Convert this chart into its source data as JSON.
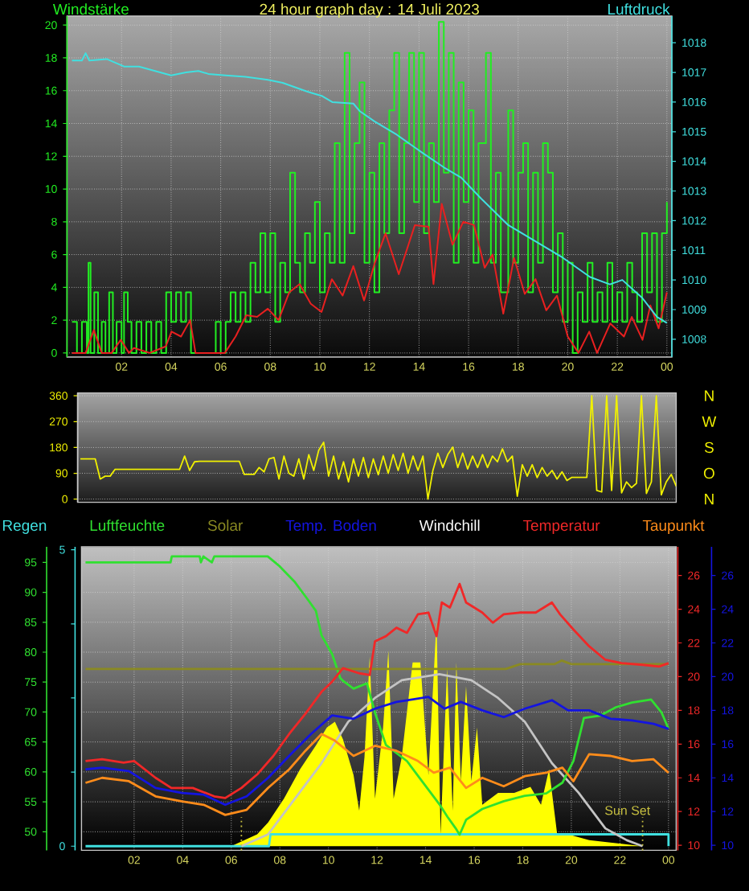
{
  "chart_data": [
    {
      "type": "line",
      "title": "24 hour graph day : 14 Juli 2023",
      "ylabel": "Windstärke",
      "y2label": "Luftdruck",
      "xlim": [
        "2023-07-13T23:48",
        "2023-07-15T00:12"
      ],
      "xticks": [
        {
          "value": "2023-07-14T02:00",
          "label": "02"
        },
        {
          "value": "2023-07-14T04:00",
          "label": "04"
        },
        {
          "value": "2023-07-14T06:00",
          "label": "06"
        },
        {
          "value": "2023-07-14T08:00",
          "label": "08"
        },
        {
          "value": "2023-07-14T10:00",
          "label": "10"
        },
        {
          "value": "2023-07-14T12:00",
          "label": "12"
        },
        {
          "value": "2023-07-14T14:00",
          "label": "14"
        },
        {
          "value": "2023-07-14T16:00",
          "label": "16"
        },
        {
          "value": "2023-07-14T18:00",
          "label": "18"
        },
        {
          "value": "2023-07-14T20:00",
          "label": "20"
        },
        {
          "value": "2023-07-14T22:00",
          "label": "22"
        },
        {
          "value": "2023-07-15T00:00",
          "label": "00"
        }
      ],
      "ylim": [
        -0.25,
        20.55
      ],
      "yticks": [
        0,
        2,
        4,
        6,
        8,
        10,
        12,
        14,
        16,
        18,
        20
      ],
      "y2lim": [
        1007.4,
        1018.9
      ],
      "y2ticks": [
        1008,
        1009,
        1010,
        1011,
        1012,
        1013,
        1014,
        1015,
        1016,
        1017,
        1018
      ],
      "grid": true,
      "series": [
        {
          "type": "step",
          "color": "#22ee22",
          "x": [
            "2023-07-14T00:00",
            "2023-07-14T00:12",
            "2023-07-14T00:24",
            "2023-07-14T00:36",
            "2023-07-14T00:40",
            "2023-07-14T00:45",
            "2023-07-14T00:54",
            "2023-07-14T01:03",
            "2023-07-14T01:12",
            "2023-07-14T01:21",
            "2023-07-14T01:30",
            "2023-07-14T01:39",
            "2023-07-14T01:48",
            "2023-07-14T02:00",
            "2023-07-14T02:06",
            "2023-07-14T02:15",
            "2023-07-14T02:24",
            "2023-07-14T02:36",
            "2023-07-14T02:48",
            "2023-07-14T03:00",
            "2023-07-14T03:12",
            "2023-07-14T03:24",
            "2023-07-14T03:36",
            "2023-07-14T03:48",
            "2023-07-14T04:00",
            "2023-07-14T04:12",
            "2023-07-14T04:24",
            "2023-07-14T04:36",
            "2023-07-14T04:48",
            "2023-07-14T05:00",
            "2023-07-14T05:18",
            "2023-07-14T05:36",
            "2023-07-14T05:48",
            "2023-07-14T06:00",
            "2023-07-14T06:12",
            "2023-07-14T06:24",
            "2023-07-14T06:36",
            "2023-07-14T06:48",
            "2023-07-14T07:00",
            "2023-07-14T07:12",
            "2023-07-14T07:24",
            "2023-07-14T07:36",
            "2023-07-14T07:48",
            "2023-07-14T08:00",
            "2023-07-14T08:12",
            "2023-07-14T08:24",
            "2023-07-14T08:36",
            "2023-07-14T08:48",
            "2023-07-14T09:00",
            "2023-07-14T09:12",
            "2023-07-14T09:24",
            "2023-07-14T09:36",
            "2023-07-14T09:48",
            "2023-07-14T10:00",
            "2023-07-14T10:12",
            "2023-07-14T10:24",
            "2023-07-14T10:36",
            "2023-07-14T10:48",
            "2023-07-14T11:00",
            "2023-07-14T11:12",
            "2023-07-14T11:24",
            "2023-07-14T11:36",
            "2023-07-14T11:48",
            "2023-07-14T12:00",
            "2023-07-14T12:12",
            "2023-07-14T12:24",
            "2023-07-14T12:36",
            "2023-07-14T12:48",
            "2023-07-14T13:00",
            "2023-07-14T13:12",
            "2023-07-14T13:24",
            "2023-07-14T13:36",
            "2023-07-14T13:48",
            "2023-07-14T14:00",
            "2023-07-14T14:12",
            "2023-07-14T14:24",
            "2023-07-14T14:36",
            "2023-07-14T14:48",
            "2023-07-14T15:00",
            "2023-07-14T15:12",
            "2023-07-14T15:24",
            "2023-07-14T15:36",
            "2023-07-14T15:48",
            "2023-07-14T16:00",
            "2023-07-14T16:12",
            "2023-07-14T16:24",
            "2023-07-14T16:42",
            "2023-07-14T16:54",
            "2023-07-14T17:06",
            "2023-07-14T17:18",
            "2023-07-14T17:36",
            "2023-07-14T17:48",
            "2023-07-14T18:00",
            "2023-07-14T18:12",
            "2023-07-14T18:24",
            "2023-07-14T18:36",
            "2023-07-14T18:48",
            "2023-07-14T19:00",
            "2023-07-14T19:12",
            "2023-07-14T19:24",
            "2023-07-14T19:36",
            "2023-07-14T19:48",
            "2023-07-14T20:00",
            "2023-07-14T20:12",
            "2023-07-14T20:24",
            "2023-07-14T20:36",
            "2023-07-14T20:48",
            "2023-07-14T21:00",
            "2023-07-14T21:12",
            "2023-07-14T21:24",
            "2023-07-14T21:36",
            "2023-07-14T21:48",
            "2023-07-14T22:00",
            "2023-07-14T22:12",
            "2023-07-14T22:24",
            "2023-07-14T22:36",
            "2023-07-14T22:48",
            "2023-07-14T23:00",
            "2023-07-14T23:12",
            "2023-07-14T23:24",
            "2023-07-14T23:36",
            "2023-07-14T23:48",
            "2023-07-15T00:00"
          ],
          "values": [
            1.9,
            0,
            1.9,
            0,
            5.5,
            0,
            3.7,
            0,
            1.9,
            0,
            3.7,
            0,
            1.9,
            0,
            3.7,
            1.9,
            0,
            1.9,
            0,
            1.9,
            0,
            1.9,
            0,
            3.7,
            1.9,
            3.7,
            1.9,
            3.7,
            0,
            0,
            0,
            0,
            1.9,
            0,
            1.9,
            3.7,
            1.9,
            3.7,
            1.9,
            5.5,
            3.7,
            7.3,
            3.7,
            7.3,
            1.9,
            5.5,
            3.7,
            11.0,
            5.5,
            3.7,
            7.3,
            5.5,
            9.2,
            3.7,
            7.3,
            5.5,
            12.8,
            5.5,
            18.3,
            7.3,
            12.8,
            16.5,
            5.5,
            11.0,
            3.7,
            12.8,
            7.3,
            14.8,
            18.3,
            7.3,
            12.8,
            18.3,
            9.2,
            18.3,
            7.3,
            12.8,
            9.2,
            20.2,
            11.0,
            18.3,
            5.5,
            16.5,
            9.2,
            14.8,
            5.5,
            12.8,
            18.3,
            5.5,
            11.0,
            3.7,
            14.8,
            5.5,
            11.0,
            12.8,
            3.7,
            11.0,
            5.5,
            12.8,
            11.0,
            3.7,
            7.3,
            1.9,
            5.5,
            0,
            3.7,
            1.9,
            5.5,
            1.9,
            3.7,
            1.9,
            5.5,
            1.9,
            3.7,
            1.9,
            5.5,
            3.7,
            1.9,
            7.3,
            3.7,
            7.3,
            1.9,
            7.3,
            9.2
          ]
        },
        {
          "color": "#e82020",
          "x": [
            "2023-07-14T00:00",
            "2023-07-14T00:33",
            "2023-07-14T00:53",
            "2023-07-14T01:12",
            "2023-07-14T01:36",
            "2023-07-14T01:58",
            "2023-07-14T02:18",
            "2023-07-14T02:30",
            "2023-07-14T03:08",
            "2023-07-14T03:47",
            "2023-07-14T04:01",
            "2023-07-14T04:24",
            "2023-07-14T04:46",
            "2023-07-14T04:59",
            "2023-07-14T05:30",
            "2023-07-14T06:10",
            "2023-07-14T06:36",
            "2023-07-14T07:02",
            "2023-07-14T07:28",
            "2023-07-14T07:54",
            "2023-07-14T08:20",
            "2023-07-14T08:46",
            "2023-07-14T09:11",
            "2023-07-14T09:38",
            "2023-07-14T10:04",
            "2023-07-14T10:29",
            "2023-07-14T10:55",
            "2023-07-14T11:21",
            "2023-07-14T11:47",
            "2023-07-14T12:13",
            "2023-07-14T12:39",
            "2023-07-14T13:11",
            "2023-07-14T13:50",
            "2023-07-14T14:23",
            "2023-07-14T14:35",
            "2023-07-14T14:55",
            "2023-07-14T15:21",
            "2023-07-14T15:47",
            "2023-07-14T16:13",
            "2023-07-14T16:39",
            "2023-07-14T16:58",
            "2023-07-14T17:24",
            "2023-07-14T17:50",
            "2023-07-14T18:16",
            "2023-07-14T18:42",
            "2023-07-14T19:08",
            "2023-07-14T19:34",
            "2023-07-14T20:00",
            "2023-07-14T20:26",
            "2023-07-14T20:52",
            "2023-07-14T21:11",
            "2023-07-14T21:43",
            "2023-07-14T22:16",
            "2023-07-14T22:35",
            "2023-07-14T23:01",
            "2023-07-14T23:20",
            "2023-07-14T23:40",
            "2023-07-15T00:00"
          ],
          "values": [
            0,
            0,
            1.4,
            0,
            0,
            0.8,
            0,
            0.3,
            0,
            0.4,
            1.3,
            1.0,
            2.0,
            0,
            0,
            0,
            1.0,
            2.3,
            2.2,
            2.7,
            2.0,
            3.7,
            4.2,
            3.0,
            2.5,
            4.5,
            3.5,
            5.3,
            3.2,
            5.5,
            7.3,
            4.8,
            7.8,
            7.7,
            4.2,
            9.1,
            6.6,
            8.0,
            7.8,
            5.2,
            6.0,
            2.4,
            5.8,
            3.6,
            4.5,
            2.6,
            3.5,
            1.0,
            0,
            1.3,
            0,
            1.8,
            1.0,
            2.2,
            0.8,
            2.9,
            1.5,
            3.7
          ]
        },
        {
          "color": "#40e0e0",
          "axis": "y2",
          "x": [
            "2023-07-14T00:00",
            "2023-07-14T00:24",
            "2023-07-14T00:33",
            "2023-07-14T00:42",
            "2023-07-14T01:24",
            "2023-07-14T02:06",
            "2023-07-14T02:42",
            "2023-07-14T04:00",
            "2023-07-14T04:36",
            "2023-07-14T05:06",
            "2023-07-14T05:30",
            "2023-07-14T06:12",
            "2023-07-14T07:00",
            "2023-07-14T07:54",
            "2023-07-14T08:30",
            "2023-07-14T09:00",
            "2023-07-14T09:30",
            "2023-07-14T10:06",
            "2023-07-14T10:30",
            "2023-07-14T11:21",
            "2023-07-14T11:36",
            "2023-07-14T12:12",
            "2023-07-14T13:06",
            "2023-07-14T14:12",
            "2023-07-14T15:00",
            "2023-07-14T15:42",
            "2023-07-14T16:30",
            "2023-07-14T17:36",
            "2023-07-14T18:42",
            "2023-07-14T19:48",
            "2023-07-14T20:54",
            "2023-07-14T21:42",
            "2023-07-14T22:12",
            "2023-07-14T23:00",
            "2023-07-14T23:36",
            "2023-07-15T00:00"
          ],
          "values": [
            1017.4,
            1017.4,
            1017.65,
            1017.4,
            1017.45,
            1017.2,
            1017.2,
            1016.9,
            1017.0,
            1017.05,
            1016.95,
            1016.9,
            1016.85,
            1016.75,
            1016.65,
            1016.5,
            1016.35,
            1016.2,
            1016.0,
            1015.95,
            1015.7,
            1015.35,
            1014.9,
            1014.25,
            1013.8,
            1013.45,
            1012.75,
            1011.85,
            1011.3,
            1010.75,
            1010.1,
            1009.85,
            1010.0,
            1009.4,
            1008.75,
            1008.55
          ]
        }
      ]
    },
    {
      "type": "line",
      "categories": [
        null,
        null,
        null,
        null,
        null,
        null,
        null,
        null,
        null,
        null,
        null,
        null,
        null,
        null,
        null,
        null,
        null,
        null,
        null,
        null,
        null,
        null,
        null,
        null,
        null,
        null,
        null,
        null,
        null,
        null,
        null,
        null,
        null,
        null,
        null,
        null,
        null,
        null,
        null,
        null,
        null,
        null,
        null,
        null,
        null,
        null,
        null,
        null,
        null,
        null,
        null,
        null,
        null,
        null,
        null,
        null,
        null,
        null,
        null,
        null,
        null,
        null,
        null,
        null,
        null,
        null,
        null,
        null,
        null,
        null,
        null,
        null,
        null,
        null,
        null,
        null,
        null,
        null,
        null,
        null,
        null,
        null,
        null,
        null,
        null,
        null,
        null,
        null,
        null,
        null,
        null,
        null,
        null,
        null,
        null,
        null,
        null,
        null,
        null,
        null,
        null,
        null,
        null,
        null,
        null,
        null,
        null,
        null,
        null,
        null,
        null,
        null,
        null,
        null,
        null,
        null,
        null,
        null,
        null,
        null,
        null
      ],
      "ylim": [
        -11,
        370
      ],
      "yticks": [
        0,
        90,
        180,
        270,
        360
      ],
      "grid": "y",
      "annotations": [
        "N",
        "W",
        "S",
        "O",
        "N"
      ],
      "series": [
        {
          "color": "#f0f000",
          "values": [
            140,
            140,
            140,
            140,
            70,
            80,
            80,
            104,
            104,
            104,
            104,
            104,
            104,
            104,
            104,
            104,
            104,
            104,
            104,
            104,
            104,
            150,
            100,
            130,
            132,
            132,
            132,
            132,
            132,
            132,
            132,
            132,
            132,
            86,
            86,
            86,
            110,
            95,
            140,
            145,
            70,
            150,
            90,
            80,
            140,
            70,
            155,
            100,
            170,
            198,
            80,
            150,
            70,
            130,
            60,
            140,
            80,
            145,
            75,
            140,
            85,
            150,
            90,
            155,
            100,
            160,
            90,
            150,
            100,
            150,
            0,
            100,
            160,
            110,
            155,
            181,
            110,
            160,
            105,
            150,
            110,
            155,
            110,
            150,
            130,
            175,
            130,
            150,
            10,
            120,
            80,
            120,
            75,
            110,
            80,
            100,
            70,
            95,
            65,
            76,
            76,
            76,
            76,
            360,
            30,
            25,
            360,
            30,
            360,
            22,
            60,
            40,
            55,
            360,
            20,
            60,
            360,
            15,
            60,
            86,
            45
          ]
        }
      ]
    },
    {
      "type": "line",
      "xlim": [
        "2023-07-13T23:50",
        "2023-07-15T00:19"
      ],
      "ylim": [
        -0.07,
        5.05
      ],
      "yticks": [
        0,
        {
          "value": 1.25,
          "label": null
        },
        {
          "value": 2.5,
          "label": null
        },
        {
          "value": 3.75,
          "label": null
        },
        5
      ],
      "tick_labels": "y",
      "legend": "top",
      "series": [
        {
          "name": "Regen",
          "color": "#40e0e0",
          "x": [
            "2023-07-14T00:00",
            "2023-07-14T07:33",
            "2023-07-14T07:37",
            "2023-07-15T00:00",
            "2023-07-15T00:00"
          ],
          "values": [
            0,
            0,
            0.2,
            0.2,
            0
          ]
        },
        {
          "type": "area",
          "color": "#ffff00",
          "x": [
            "2023-07-14T00:00",
            "2023-07-14T06:00",
            "2023-07-14T07:04",
            "2023-07-14T07:31",
            "2023-07-14T08:10",
            "2023-07-14T08:50",
            "2023-07-14T09:29",
            "2023-07-14T09:56",
            "2023-07-14T10:16",
            "2023-07-14T10:36",
            "2023-07-14T11:02",
            "2023-07-14T11:16",
            "2023-07-14T11:29",
            "2023-07-14T11:42",
            "2023-07-14T11:55",
            "2023-07-14T12:15",
            "2023-07-14T12:28",
            "2023-07-14T12:41",
            "2023-07-14T13:01",
            "2023-07-14T13:28",
            "2023-07-14T13:47",
            "2023-07-14T14:07",
            "2023-07-14T14:27",
            "2023-07-14T14:37",
            "2023-07-14T14:53",
            "2023-07-14T15:07",
            "2023-07-14T15:16",
            "2023-07-14T15:27",
            "2023-07-14T15:40",
            "2023-07-14T15:53",
            "2023-07-14T16:07",
            "2023-07-14T16:20",
            "2023-07-14T16:59",
            "2023-07-14T17:39",
            "2023-07-14T18:19",
            "2023-07-14T18:45",
            "2023-07-14T19:05",
            "2023-07-14T19:25",
            "2023-07-14T19:52",
            "2023-07-14T20:44",
            "2023-07-14T22:56",
            "2023-07-15T00:00"
          ],
          "values": [
            0,
            0,
            0.2,
            0.4,
            0.8,
            1.3,
            1.7,
            2.0,
            2.1,
            1.8,
            1.2,
            0.6,
            1.5,
            3.2,
            0.8,
            2.0,
            3.3,
            0.8,
            1.5,
            3.1,
            3.1,
            1.2,
            3.8,
            0.2,
            3.0,
            0.6,
            3.1,
            1.1,
            2.7,
            1.1,
            2.0,
            0.7,
            0.9,
            0.9,
            1.0,
            0.7,
            1.3,
            0.2,
            0.2,
            0.1,
            0,
            0
          ]
        },
        {
          "color": "#c4c4c4",
          "x": [
            "2023-07-14T06:25",
            "2023-07-14T07:31",
            "2023-07-14T08:37",
            "2023-07-14T09:43",
            "2023-07-14T10:49",
            "2023-07-14T11:55",
            "2023-07-14T13:01",
            "2023-07-14T14:34",
            "2023-07-14T15:53",
            "2023-07-14T16:59",
            "2023-07-14T18:05",
            "2023-07-14T19:12",
            "2023-07-14T20:18",
            "2023-07-14T21:24",
            "2023-07-14T22:17",
            "2023-07-14T22:56"
          ],
          "values": [
            0,
            0.2,
            0.8,
            1.4,
            2.1,
            2.5,
            2.8,
            2.9,
            2.8,
            2.5,
            2.1,
            1.4,
            0.9,
            0.3,
            0.1,
            0
          ]
        }
      ]
    },
    {
      "type": "line",
      "xlim": [
        "2023-07-13T23:50",
        "2023-07-15T00:19"
      ],
      "xticks": [
        {
          "value": "2023-07-14T02:00",
          "label": "02"
        },
        {
          "value": "2023-07-14T04:00",
          "label": "04"
        },
        {
          "value": "2023-07-14T06:00",
          "label": "06"
        },
        {
          "value": "2023-07-14T08:00",
          "label": "08"
        },
        {
          "value": "2023-07-14T10:00",
          "label": "10"
        },
        {
          "value": "2023-07-14T12:00",
          "label": "12"
        },
        {
          "value": "2023-07-14T14:00",
          "label": "14"
        },
        {
          "value": "2023-07-14T16:00",
          "label": "16"
        },
        {
          "value": "2023-07-14T18:00",
          "label": "18"
        },
        {
          "value": "2023-07-14T20:00",
          "label": "20"
        },
        {
          "value": "2023-07-14T22:00",
          "label": "22"
        },
        {
          "value": "2023-07-15T00:00",
          "label": "00"
        }
      ],
      "ylim": [
        46.9,
        97.6
      ],
      "yticks": [
        50,
        55,
        60,
        65,
        70,
        75,
        80,
        85,
        90,
        95
      ],
      "y2lim": [
        9.7,
        27.7
      ],
      "y2ticks": [
        10,
        12,
        14,
        16,
        18,
        20,
        22,
        24,
        26
      ],
      "y3lim": [
        9.7,
        27.7
      ],
      "y3ticks": [
        10,
        12,
        14,
        16,
        18,
        20,
        22,
        24,
        26
      ],
      "grid": true,
      "legend": "top",
      "ref_lines": [
        {
          "axis": "x",
          "value": "2023-07-14T06:25",
          "color": "#c8c040",
          "line_style": "dotted"
        },
        {
          "axis": "x",
          "value": "2023-07-14T22:56",
          "label": "Sun Set",
          "color": "#c8c040",
          "line_style": "dotted"
        }
      ],
      "series": [
        {
          "name": "Luftfeuchte",
          "color": "#30e030",
          "x": [
            "2023-07-14T00:00",
            "2023-07-14T03:30",
            "2023-07-14T03:33",
            "2023-07-14T04:42",
            "2023-07-14T04:45",
            "2023-07-14T04:51",
            "2023-07-14T05:12",
            "2023-07-14T05:18",
            "2023-07-14T07:30",
            "2023-07-14T07:57",
            "2023-07-14T08:36",
            "2023-07-14T09:10",
            "2023-07-14T09:29",
            "2023-07-14T09:43",
            "2023-07-14T10:09",
            "2023-07-14T10:29",
            "2023-07-14T10:36",
            "2023-07-14T11:02",
            "2023-07-14T11:35",
            "2023-07-14T11:55",
            "2023-07-14T12:22",
            "2023-07-14T13:14",
            "2023-07-14T13:54",
            "2023-07-14T14:34",
            "2023-07-14T14:54",
            "2023-07-14T15:14",
            "2023-07-14T15:24",
            "2023-07-14T15:40",
            "2023-07-14T16:20",
            "2023-07-14T17:13",
            "2023-07-14T18:05",
            "2023-07-14T18:58",
            "2023-07-14T19:38",
            "2023-07-14T20:05",
            "2023-07-14T20:31",
            "2023-07-14T21:11",
            "2023-07-14T21:50",
            "2023-07-14T22:30",
            "2023-07-14T23:17",
            "2023-07-14T23:43",
            "2023-07-15T00:00"
          ],
          "values": [
            95,
            95,
            96,
            96,
            95,
            96,
            95,
            96,
            96,
            94.5,
            91.8,
            88.7,
            86.9,
            82.8,
            79.7,
            75.7,
            75.2,
            73.9,
            74.8,
            69.9,
            64.5,
            61.8,
            58.2,
            54.6,
            52.5,
            50.6,
            49.5,
            52.0,
            53.8,
            55.1,
            56.0,
            56.4,
            58.2,
            61.8,
            69.0,
            69.4,
            70.8,
            71.6,
            72.1,
            69.9,
            67.2
          ]
        },
        {
          "name": "Solar",
          "color": "#8a8a22",
          "x": [
            "2023-07-14T00:00",
            "2023-07-14T17:18",
            "2023-07-14T17:54",
            "2023-07-14T19:18",
            "2023-07-14T19:36",
            "2023-07-14T20:00",
            "2023-07-15T00:00"
          ],
          "values": [
            77.2,
            77.2,
            78.0,
            78.0,
            78.6,
            78.0,
            78.0
          ]
        },
        {
          "name": "Temp. Boden",
          "color": "#1414e0",
          "axis": "y3",
          "x": [
            "2023-07-14T00:00",
            "2023-07-14T00:41",
            "2023-07-14T01:47",
            "2023-07-14T02:53",
            "2023-07-14T03:59",
            "2023-07-14T04:52",
            "2023-07-14T05:45",
            "2023-07-14T06:38",
            "2023-07-14T07:31",
            "2023-07-14T08:23",
            "2023-07-14T09:17",
            "2023-07-14T10:09",
            "2023-07-14T11:02",
            "2023-07-14T11:55",
            "2023-07-14T12:48",
            "2023-07-14T13:14",
            "2023-07-14T14:07",
            "2023-07-14T14:47",
            "2023-07-14T15:27",
            "2023-07-14T16:20",
            "2023-07-14T17:13",
            "2023-07-14T18:05",
            "2023-07-14T19:12",
            "2023-07-14T19:52",
            "2023-07-14T20:44",
            "2023-07-14T21:37",
            "2023-07-14T22:30",
            "2023-07-14T23:23",
            "2023-07-15T00:00"
          ],
          "values": [
            14.5,
            14.6,
            14.4,
            13.4,
            13.1,
            13.0,
            12.4,
            12.9,
            14.0,
            15.3,
            16.6,
            17.7,
            17.5,
            18.1,
            18.5,
            18.6,
            18.8,
            18.1,
            18.5,
            18.0,
            17.6,
            18.1,
            18.6,
            18.0,
            18.0,
            17.5,
            17.4,
            17.2,
            16.9
          ]
        },
        {
          "name": "Windchill",
          "color": "#ffffff",
          "axis": "y2",
          "values": [
            null
          ]
        },
        {
          "name": "Temperatur",
          "color": "#f02828",
          "axis": "y2",
          "x": [
            "2023-07-14T00:00",
            "2023-07-14T00:41",
            "2023-07-14T01:34",
            "2023-07-14T02:00",
            "2023-07-14T02:53",
            "2023-07-14T03:32",
            "2023-07-14T04:25",
            "2023-07-14T05:18",
            "2023-07-14T05:45",
            "2023-07-14T06:25",
            "2023-07-14T07:04",
            "2023-07-14T07:44",
            "2023-07-14T08:23",
            "2023-07-14T09:03",
            "2023-07-14T09:43",
            "2023-07-14T10:09",
            "2023-07-14T10:36",
            "2023-07-14T11:16",
            "2023-07-14T11:42",
            "2023-07-14T11:55",
            "2023-07-14T12:22",
            "2023-07-14T12:48",
            "2023-07-14T13:14",
            "2023-07-14T13:41",
            "2023-07-14T14:07",
            "2023-07-14T14:27",
            "2023-07-14T14:40",
            "2023-07-14T15:00",
            "2023-07-14T15:24",
            "2023-07-14T15:40",
            "2023-07-14T16:20",
            "2023-07-14T16:46",
            "2023-07-14T17:13",
            "2023-07-14T17:52",
            "2023-07-14T18:32",
            "2023-07-14T19:12",
            "2023-07-14T19:32",
            "2023-07-14T20:05",
            "2023-07-14T20:44",
            "2023-07-14T21:24",
            "2023-07-14T22:04",
            "2023-07-14T22:56",
            "2023-07-14T23:37",
            "2023-07-15T00:00"
          ],
          "values": [
            15.0,
            15.1,
            14.9,
            15.0,
            14.0,
            13.4,
            13.4,
            12.9,
            12.8,
            13.4,
            14.2,
            15.3,
            16.6,
            17.8,
            19.1,
            19.7,
            20.5,
            20.2,
            20.1,
            22.1,
            22.4,
            22.9,
            22.6,
            23.7,
            23.8,
            22.4,
            24.4,
            24.1,
            25.5,
            24.4,
            23.8,
            23.2,
            23.7,
            23.8,
            23.8,
            24.4,
            23.7,
            22.8,
            21.8,
            21.0,
            20.8,
            20.7,
            20.6,
            20.8
          ]
        },
        {
          "name": "Taupunkt",
          "color": "#ff8c1a",
          "axis": "y2",
          "x": [
            "2023-07-14T00:00",
            "2023-07-14T00:41",
            "2023-07-14T01:47",
            "2023-07-14T02:53",
            "2023-07-14T03:59",
            "2023-07-14T04:52",
            "2023-07-14T05:45",
            "2023-07-14T06:38",
            "2023-07-14T07:31",
            "2023-07-14T08:23",
            "2023-07-14T09:03",
            "2023-07-14T09:43",
            "2023-07-14T10:16",
            "2023-07-14T11:02",
            "2023-07-14T11:55",
            "2023-07-14T12:48",
            "2023-07-14T13:41",
            "2023-07-14T14:20",
            "2023-07-14T15:00",
            "2023-07-14T15:40",
            "2023-07-14T16:20",
            "2023-07-14T17:13",
            "2023-07-14T18:05",
            "2023-07-14T18:58",
            "2023-07-14T19:38",
            "2023-07-14T20:05",
            "2023-07-14T20:44",
            "2023-07-14T21:37",
            "2023-07-14T22:30",
            "2023-07-14T23:23",
            "2023-07-15T00:00"
          ],
          "values": [
            13.7,
            14.0,
            13.8,
            12.9,
            12.6,
            12.4,
            11.8,
            12.1,
            13.4,
            14.5,
            15.6,
            16.6,
            16.2,
            15.3,
            15.9,
            15.6,
            15.0,
            14.3,
            14.6,
            13.4,
            14.0,
            13.5,
            14.1,
            14.3,
            14.6,
            13.8,
            15.4,
            15.3,
            15.0,
            15.1,
            14.3
          ]
        }
      ]
    }
  ]
}
